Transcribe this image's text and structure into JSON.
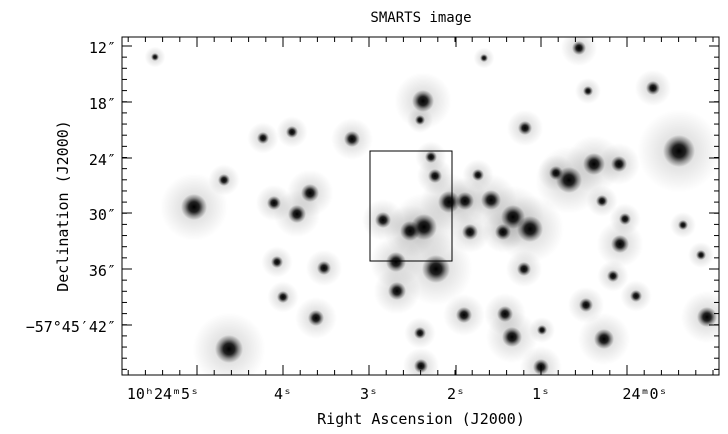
{
  "figure": {
    "title": "SMARTS image",
    "xlabel": "Right Ascension (J2000)",
    "ylabel": "Declination (J2000)",
    "x_ticks": [
      {
        "id": "ra-5",
        "label": "10ʰ24ᵐ5ˢ"
      },
      {
        "id": "ra-4",
        "label": "4ˢ"
      },
      {
        "id": "ra-3",
        "label": "3ˢ"
      },
      {
        "id": "ra-2",
        "label": "2ˢ"
      },
      {
        "id": "ra-1",
        "label": "1ˢ"
      },
      {
        "id": "ra-0",
        "label": "24ᵐ0ˢ"
      }
    ],
    "y_ticks": [
      {
        "id": "dec-12",
        "label": "12″"
      },
      {
        "id": "dec-18",
        "label": "18″"
      },
      {
        "id": "dec-24",
        "label": "24″"
      },
      {
        "id": "dec-30",
        "label": "30″"
      },
      {
        "id": "dec-36",
        "label": "36″"
      },
      {
        "id": "dec-42",
        "label": "−57°45′42″"
      }
    ],
    "colors": {
      "background": "#ffffff",
      "star": "#000000",
      "frame": "#000000"
    }
  }
}
